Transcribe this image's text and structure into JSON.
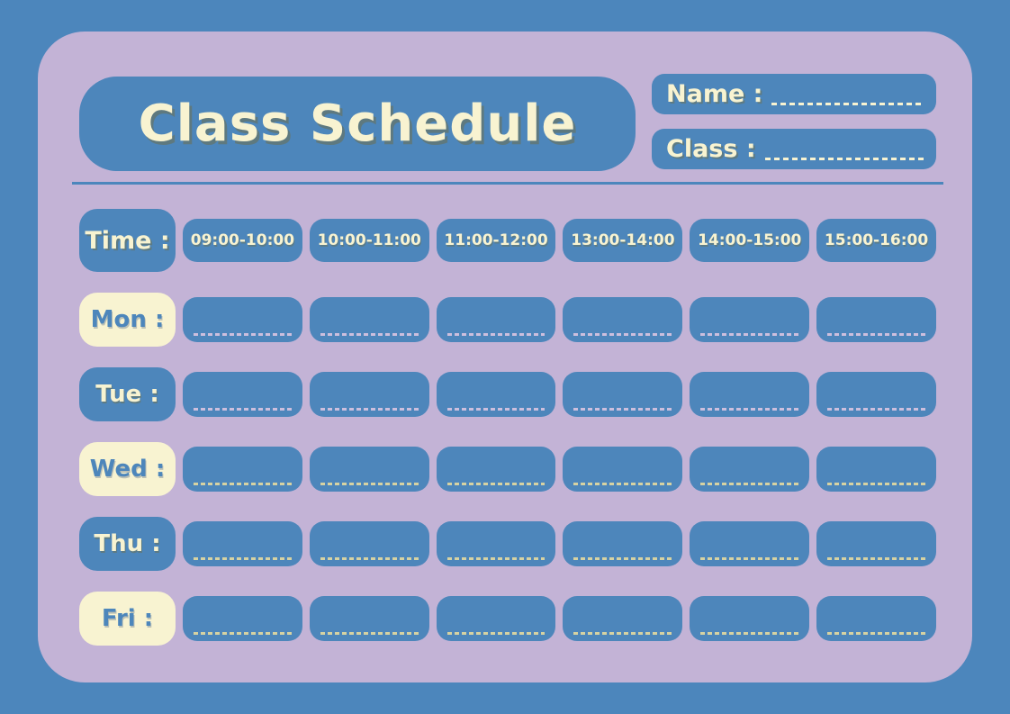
{
  "page": {
    "title": "Class Schedule"
  },
  "header": {
    "name_label": "Name :",
    "name_value": "",
    "class_label": "Class :",
    "class_value": ""
  },
  "table": {
    "time_label": "Time :",
    "time_slots": [
      "09:00-10:00",
      "10:00-11:00",
      "11:00-12:00",
      "13:00-14:00",
      "14:00-15:00",
      "15:00-16:00"
    ],
    "days": [
      {
        "label": "Mon :",
        "style": "cream",
        "dash_color": "#cdbfdd",
        "entries": [
          "",
          "",
          "",
          "",
          "",
          ""
        ]
      },
      {
        "label": "Tue :",
        "style": "blue",
        "dash_color": "#cdbfdd",
        "entries": [
          "",
          "",
          "",
          "",
          "",
          ""
        ]
      },
      {
        "label": "Wed :",
        "style": "cream",
        "dash_color": "#d6d2a2",
        "entries": [
          "",
          "",
          "",
          "",
          "",
          ""
        ]
      },
      {
        "label": "Thu :",
        "style": "blue",
        "dash_color": "#d6d2a2",
        "entries": [
          "",
          "",
          "",
          "",
          "",
          ""
        ]
      },
      {
        "label": "Fri :",
        "style": "cream",
        "dash_color": "#d6d2a2",
        "entries": [
          "",
          "",
          "",
          "",
          "",
          ""
        ]
      }
    ]
  },
  "colors": {
    "background": "#4c86bc",
    "card": "#c3b3d6",
    "cell_blue": "#4d86bb",
    "cream": "#f8f3d1",
    "title_shadow": "#6d704e"
  }
}
